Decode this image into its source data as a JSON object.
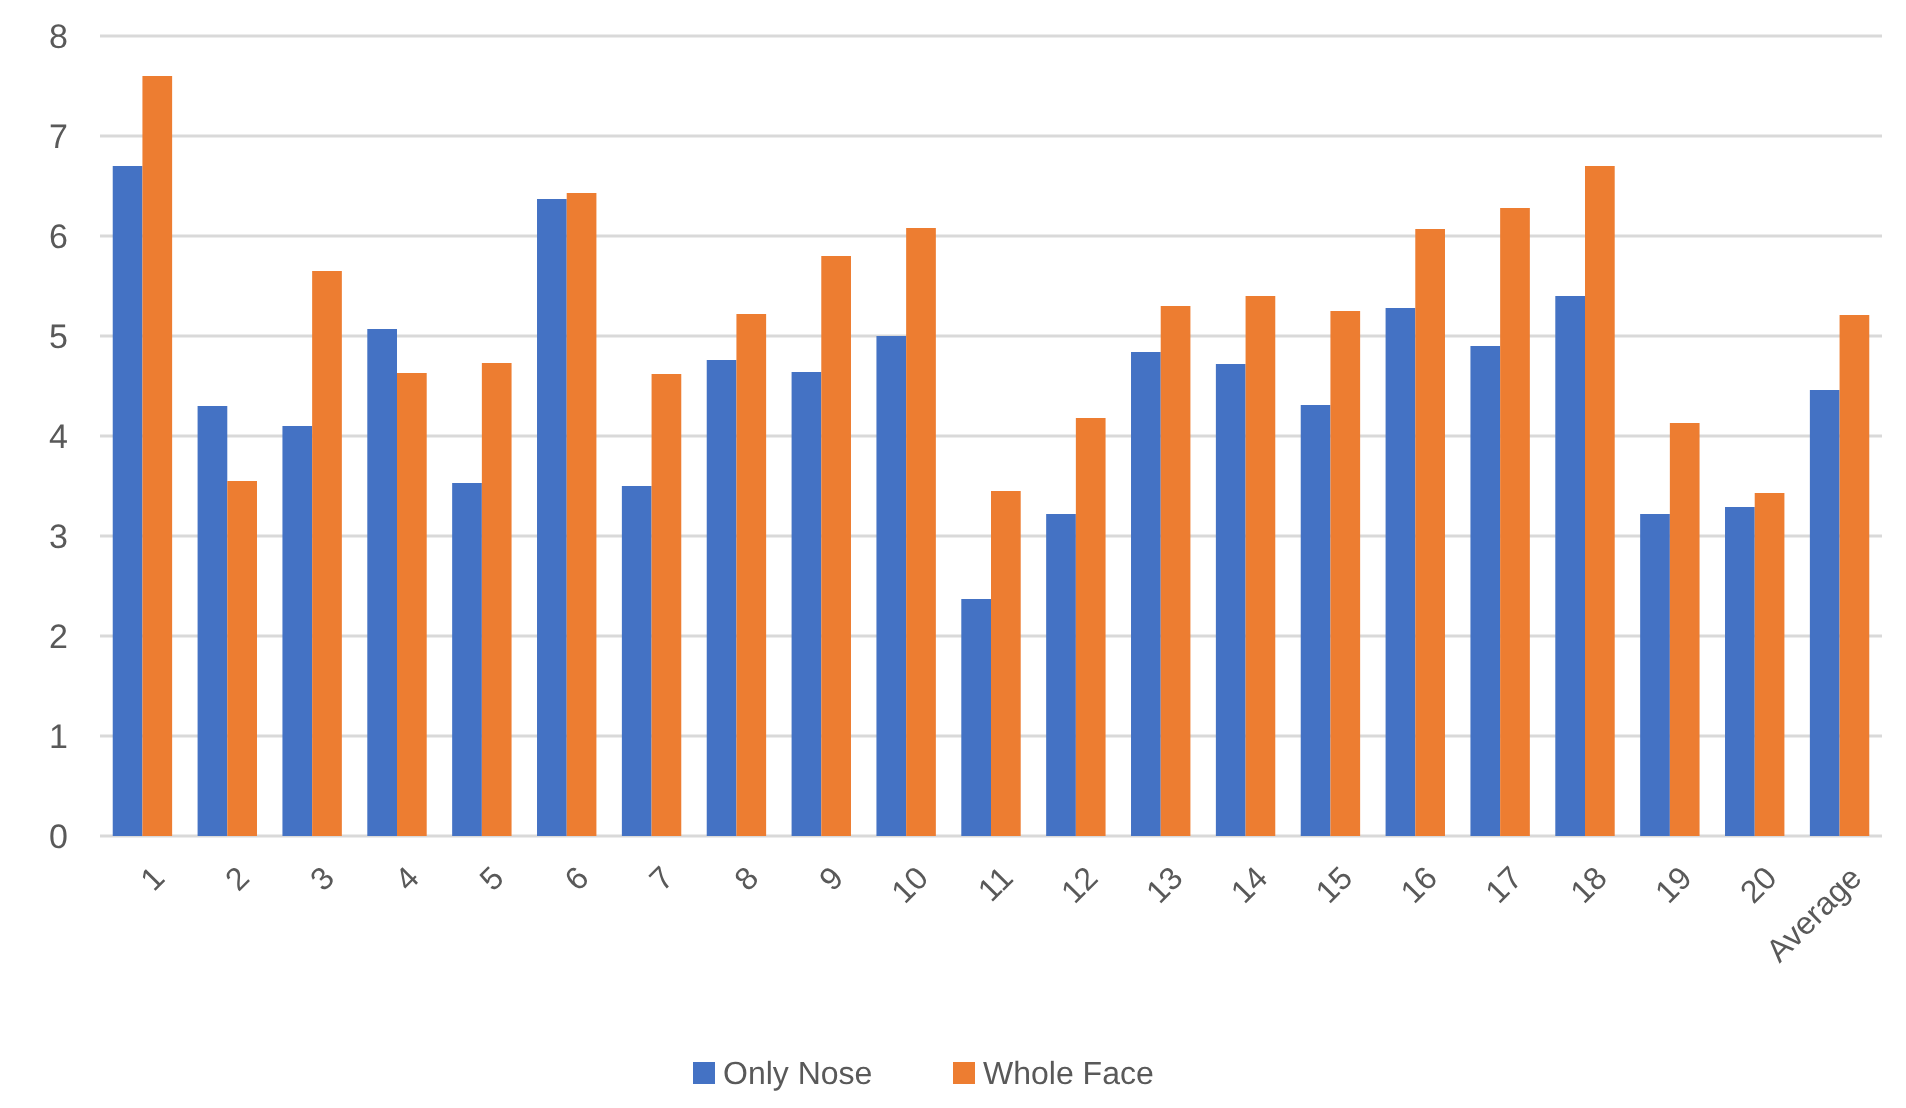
{
  "chart_data": {
    "type": "bar",
    "categories": [
      "1",
      "2",
      "3",
      "4",
      "5",
      "6",
      "7",
      "8",
      "9",
      "10",
      "11",
      "12",
      "13",
      "14",
      "15",
      "16",
      "17",
      "18",
      "19",
      "20",
      "Average"
    ],
    "series": [
      {
        "name": "Only Nose",
        "color": "#4472c4",
        "values": [
          6.7,
          4.3,
          4.1,
          5.07,
          3.53,
          6.37,
          3.5,
          4.76,
          4.64,
          5.0,
          2.37,
          3.22,
          4.84,
          4.72,
          4.31,
          5.28,
          4.9,
          5.4,
          3.22,
          3.29,
          4.46
        ]
      },
      {
        "name": "Whole Face",
        "color": "#ed7d31",
        "values": [
          7.6,
          3.55,
          5.65,
          4.63,
          4.73,
          6.43,
          4.62,
          5.22,
          5.8,
          6.08,
          3.45,
          4.18,
          5.3,
          5.4,
          5.25,
          6.07,
          6.28,
          6.7,
          4.13,
          3.43,
          5.21
        ]
      }
    ],
    "ylim": [
      0,
      8
    ],
    "yticks": [
      0,
      1,
      2,
      3,
      4,
      5,
      6,
      7,
      8
    ],
    "grid": "y",
    "legend": "bottom"
  }
}
